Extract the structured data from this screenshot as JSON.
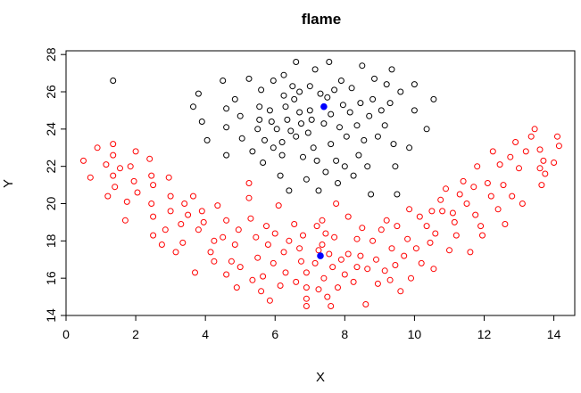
{
  "chart_data": {
    "type": "scatter",
    "title": "flame",
    "xlabel": "X",
    "ylabel": "Y",
    "xlim": [
      0,
      14.6
    ],
    "ylim": [
      14,
      28.2
    ],
    "xticks": [
      "0",
      "2",
      "4",
      "6",
      "8",
      "10",
      "12",
      "14"
    ],
    "yticks": [
      "14",
      "16",
      "18",
      "20",
      "22",
      "24",
      "26",
      "28"
    ],
    "grid": false,
    "legend": "none",
    "series": [
      {
        "color": "#000000",
        "marker": "open-circle",
        "points": [
          [
            1.35,
            26.6
          ],
          [
            3.65,
            25.2
          ],
          [
            3.8,
            25.9
          ],
          [
            3.9,
            24.4
          ],
          [
            4.05,
            23.4
          ],
          [
            4.5,
            26.6
          ],
          [
            4.6,
            25.1
          ],
          [
            4.6,
            24.1
          ],
          [
            4.6,
            22.6
          ],
          [
            4.85,
            25.6
          ],
          [
            5.0,
            24.7
          ],
          [
            5.05,
            23.5
          ],
          [
            5.25,
            26.7
          ],
          [
            5.35,
            22.8
          ],
          [
            5.5,
            24.0
          ],
          [
            5.55,
            24.5
          ],
          [
            5.55,
            25.2
          ],
          [
            5.6,
            26.1
          ],
          [
            5.65,
            22.2
          ],
          [
            5.7,
            23.4
          ],
          [
            5.85,
            25.0
          ],
          [
            5.9,
            24.4
          ],
          [
            5.95,
            23.0
          ],
          [
            5.95,
            26.6
          ],
          [
            6.05,
            24.0
          ],
          [
            6.15,
            21.5
          ],
          [
            6.2,
            22.6
          ],
          [
            6.2,
            23.3
          ],
          [
            6.25,
            26.9
          ],
          [
            6.25,
            25.8
          ],
          [
            6.3,
            25.2
          ],
          [
            6.35,
            24.5
          ],
          [
            6.4,
            20.7
          ],
          [
            6.45,
            23.9
          ],
          [
            6.5,
            26.3
          ],
          [
            6.55,
            25.6
          ],
          [
            6.6,
            23.6
          ],
          [
            6.6,
            27.6
          ],
          [
            6.7,
            26.0
          ],
          [
            6.7,
            24.9
          ],
          [
            6.75,
            24.3
          ],
          [
            6.8,
            22.5
          ],
          [
            6.9,
            21.3
          ],
          [
            6.95,
            23.8
          ],
          [
            7.0,
            25.0
          ],
          [
            7.0,
            26.3
          ],
          [
            7.05,
            24.5
          ],
          [
            7.1,
            23.0
          ],
          [
            7.15,
            27.2
          ],
          [
            7.2,
            22.3
          ],
          [
            7.25,
            20.7
          ],
          [
            7.3,
            25.9
          ],
          [
            7.4,
            24.3
          ],
          [
            7.45,
            21.7
          ],
          [
            7.5,
            25.7
          ],
          [
            7.55,
            27.6
          ],
          [
            7.6,
            24.8
          ],
          [
            7.6,
            23.2
          ],
          [
            7.7,
            26.1
          ],
          [
            7.75,
            22.3
          ],
          [
            7.8,
            21.1
          ],
          [
            7.85,
            24.1
          ],
          [
            7.9,
            26.6
          ],
          [
            7.95,
            25.3
          ],
          [
            8.0,
            22.0
          ],
          [
            8.05,
            23.6
          ],
          [
            8.15,
            24.9
          ],
          [
            8.2,
            26.2
          ],
          [
            8.25,
            21.5
          ],
          [
            8.35,
            24.2
          ],
          [
            8.4,
            22.6
          ],
          [
            8.45,
            25.4
          ],
          [
            8.5,
            27.4
          ],
          [
            8.55,
            23.4
          ],
          [
            8.65,
            22.0
          ],
          [
            8.7,
            24.7
          ],
          [
            8.75,
            20.5
          ],
          [
            8.8,
            25.6
          ],
          [
            8.85,
            26.7
          ],
          [
            8.95,
            23.6
          ],
          [
            9.05,
            25.0
          ],
          [
            9.15,
            24.2
          ],
          [
            9.2,
            26.4
          ],
          [
            9.3,
            25.4
          ],
          [
            9.35,
            27.2
          ],
          [
            9.4,
            23.2
          ],
          [
            9.45,
            22.0
          ],
          [
            9.5,
            20.5
          ],
          [
            9.6,
            26.0
          ],
          [
            9.85,
            23.0
          ],
          [
            10.0,
            26.4
          ],
          [
            10.0,
            25.0
          ],
          [
            10.35,
            24.0
          ],
          [
            10.55,
            25.6
          ]
        ]
      },
      {
        "color": "#ff0000",
        "marker": "open-circle",
        "points": [
          [
            0.5,
            22.3
          ],
          [
            0.7,
            21.4
          ],
          [
            0.9,
            23.0
          ],
          [
            1.15,
            22.1
          ],
          [
            1.2,
            20.4
          ],
          [
            1.35,
            23.2
          ],
          [
            1.35,
            22.6
          ],
          [
            1.35,
            21.5
          ],
          [
            1.4,
            20.9
          ],
          [
            1.55,
            21.9
          ],
          [
            1.7,
            19.1
          ],
          [
            1.75,
            20.1
          ],
          [
            1.85,
            22.0
          ],
          [
            1.95,
            21.2
          ],
          [
            2.0,
            22.8
          ],
          [
            2.05,
            20.6
          ],
          [
            2.4,
            22.4
          ],
          [
            2.45,
            21.5
          ],
          [
            2.45,
            20.0
          ],
          [
            2.5,
            19.3
          ],
          [
            2.5,
            18.3
          ],
          [
            2.5,
            21.0
          ],
          [
            2.75,
            17.8
          ],
          [
            2.85,
            18.6
          ],
          [
            2.95,
            21.4
          ],
          [
            3.0,
            19.6
          ],
          [
            3.0,
            20.4
          ],
          [
            3.15,
            17.4
          ],
          [
            3.3,
            18.9
          ],
          [
            3.35,
            17.9
          ],
          [
            3.4,
            20.0
          ],
          [
            3.5,
            19.4
          ],
          [
            3.65,
            20.4
          ],
          [
            3.7,
            16.3
          ],
          [
            3.8,
            18.6
          ],
          [
            3.9,
            19.6
          ],
          [
            3.95,
            19.0
          ],
          [
            4.15,
            17.4
          ],
          [
            4.25,
            16.9
          ],
          [
            4.25,
            18.0
          ],
          [
            4.35,
            19.9
          ],
          [
            4.5,
            18.2
          ],
          [
            4.6,
            16.2
          ],
          [
            4.6,
            19.1
          ],
          [
            4.75,
            16.9
          ],
          [
            4.85,
            17.8
          ],
          [
            4.9,
            15.5
          ],
          [
            4.95,
            18.6
          ],
          [
            5.0,
            16.6
          ],
          [
            5.25,
            20.3
          ],
          [
            5.25,
            21.1
          ],
          [
            5.3,
            19.2
          ],
          [
            5.35,
            15.9
          ],
          [
            5.45,
            18.2
          ],
          [
            5.5,
            17.1
          ],
          [
            5.6,
            15.3
          ],
          [
            5.65,
            16.1
          ],
          [
            5.75,
            18.8
          ],
          [
            5.8,
            17.8
          ],
          [
            5.85,
            14.8
          ],
          [
            5.95,
            16.8
          ],
          [
            6.0,
            18.4
          ],
          [
            6.1,
            19.9
          ],
          [
            6.15,
            15.6
          ],
          [
            6.25,
            17.4
          ],
          [
            6.3,
            16.3
          ],
          [
            6.4,
            18.0
          ],
          [
            6.55,
            18.9
          ],
          [
            6.6,
            15.8
          ],
          [
            6.7,
            17.6
          ],
          [
            6.75,
            16.9
          ],
          [
            6.8,
            18.3
          ],
          [
            6.9,
            14.9
          ],
          [
            6.9,
            14.5
          ],
          [
            6.9,
            15.5
          ],
          [
            6.9,
            16.3
          ],
          [
            7.15,
            16.8
          ],
          [
            7.2,
            18.8
          ],
          [
            7.25,
            17.5
          ],
          [
            7.25,
            15.4
          ],
          [
            7.35,
            17.8
          ],
          [
            7.35,
            19.1
          ],
          [
            7.4,
            16.0
          ],
          [
            7.45,
            18.4
          ],
          [
            7.5,
            15.0
          ],
          [
            7.55,
            17.3
          ],
          [
            7.6,
            14.5
          ],
          [
            7.65,
            16.6
          ],
          [
            7.7,
            18.2
          ],
          [
            7.75,
            20.0
          ],
          [
            7.8,
            15.5
          ],
          [
            7.9,
            17.0
          ],
          [
            8.0,
            16.2
          ],
          [
            8.1,
            17.3
          ],
          [
            8.1,
            19.3
          ],
          [
            8.25,
            15.8
          ],
          [
            8.35,
            16.6
          ],
          [
            8.35,
            18.1
          ],
          [
            8.45,
            17.2
          ],
          [
            8.5,
            18.7
          ],
          [
            8.6,
            14.6
          ],
          [
            8.65,
            16.5
          ],
          [
            8.8,
            18.0
          ],
          [
            8.9,
            17.0
          ],
          [
            8.95,
            15.7
          ],
          [
            9.05,
            18.6
          ],
          [
            9.15,
            16.4
          ],
          [
            9.2,
            19.1
          ],
          [
            9.3,
            15.9
          ],
          [
            9.35,
            17.6
          ],
          [
            9.45,
            16.7
          ],
          [
            9.5,
            18.8
          ],
          [
            9.6,
            15.3
          ],
          [
            9.7,
            17.2
          ],
          [
            9.8,
            18.1
          ],
          [
            9.85,
            19.7
          ],
          [
            9.9,
            16.0
          ],
          [
            10.05,
            17.6
          ],
          [
            10.15,
            19.3
          ],
          [
            10.2,
            16.8
          ],
          [
            10.35,
            18.8
          ],
          [
            10.45,
            17.9
          ],
          [
            10.5,
            19.6
          ],
          [
            10.55,
            16.5
          ],
          [
            10.6,
            18.4
          ],
          [
            10.75,
            20.2
          ],
          [
            10.8,
            19.6
          ],
          [
            10.9,
            20.8
          ],
          [
            11.0,
            17.5
          ],
          [
            11.1,
            19.5
          ],
          [
            11.15,
            19.0
          ],
          [
            11.2,
            18.3
          ],
          [
            11.3,
            20.5
          ],
          [
            11.4,
            21.2
          ],
          [
            11.5,
            20.0
          ],
          [
            11.6,
            17.4
          ],
          [
            11.7,
            20.9
          ],
          [
            11.75,
            19.4
          ],
          [
            11.8,
            22.0
          ],
          [
            11.9,
            18.8
          ],
          [
            11.95,
            18.3
          ],
          [
            12.1,
            21.1
          ],
          [
            12.2,
            20.4
          ],
          [
            12.25,
            22.8
          ],
          [
            12.4,
            19.7
          ],
          [
            12.45,
            22.1
          ],
          [
            12.55,
            21.0
          ],
          [
            12.6,
            18.9
          ],
          [
            12.75,
            22.5
          ],
          [
            12.8,
            20.4
          ],
          [
            12.9,
            23.3
          ],
          [
            13.0,
            21.9
          ],
          [
            13.1,
            20.0
          ],
          [
            13.2,
            22.8
          ],
          [
            13.35,
            23.6
          ],
          [
            13.45,
            24.0
          ],
          [
            13.6,
            22.9
          ],
          [
            13.6,
            21.9
          ],
          [
            13.65,
            21.0
          ],
          [
            13.7,
            22.3
          ],
          [
            13.75,
            21.6
          ],
          [
            14.0,
            22.2
          ],
          [
            14.1,
            23.6
          ],
          [
            14.15,
            23.1
          ]
        ]
      },
      {
        "color": "#0000ff",
        "marker": "filled-circle",
        "points": [
          [
            7.4,
            25.2
          ],
          [
            7.3,
            17.2
          ]
        ]
      }
    ]
  }
}
